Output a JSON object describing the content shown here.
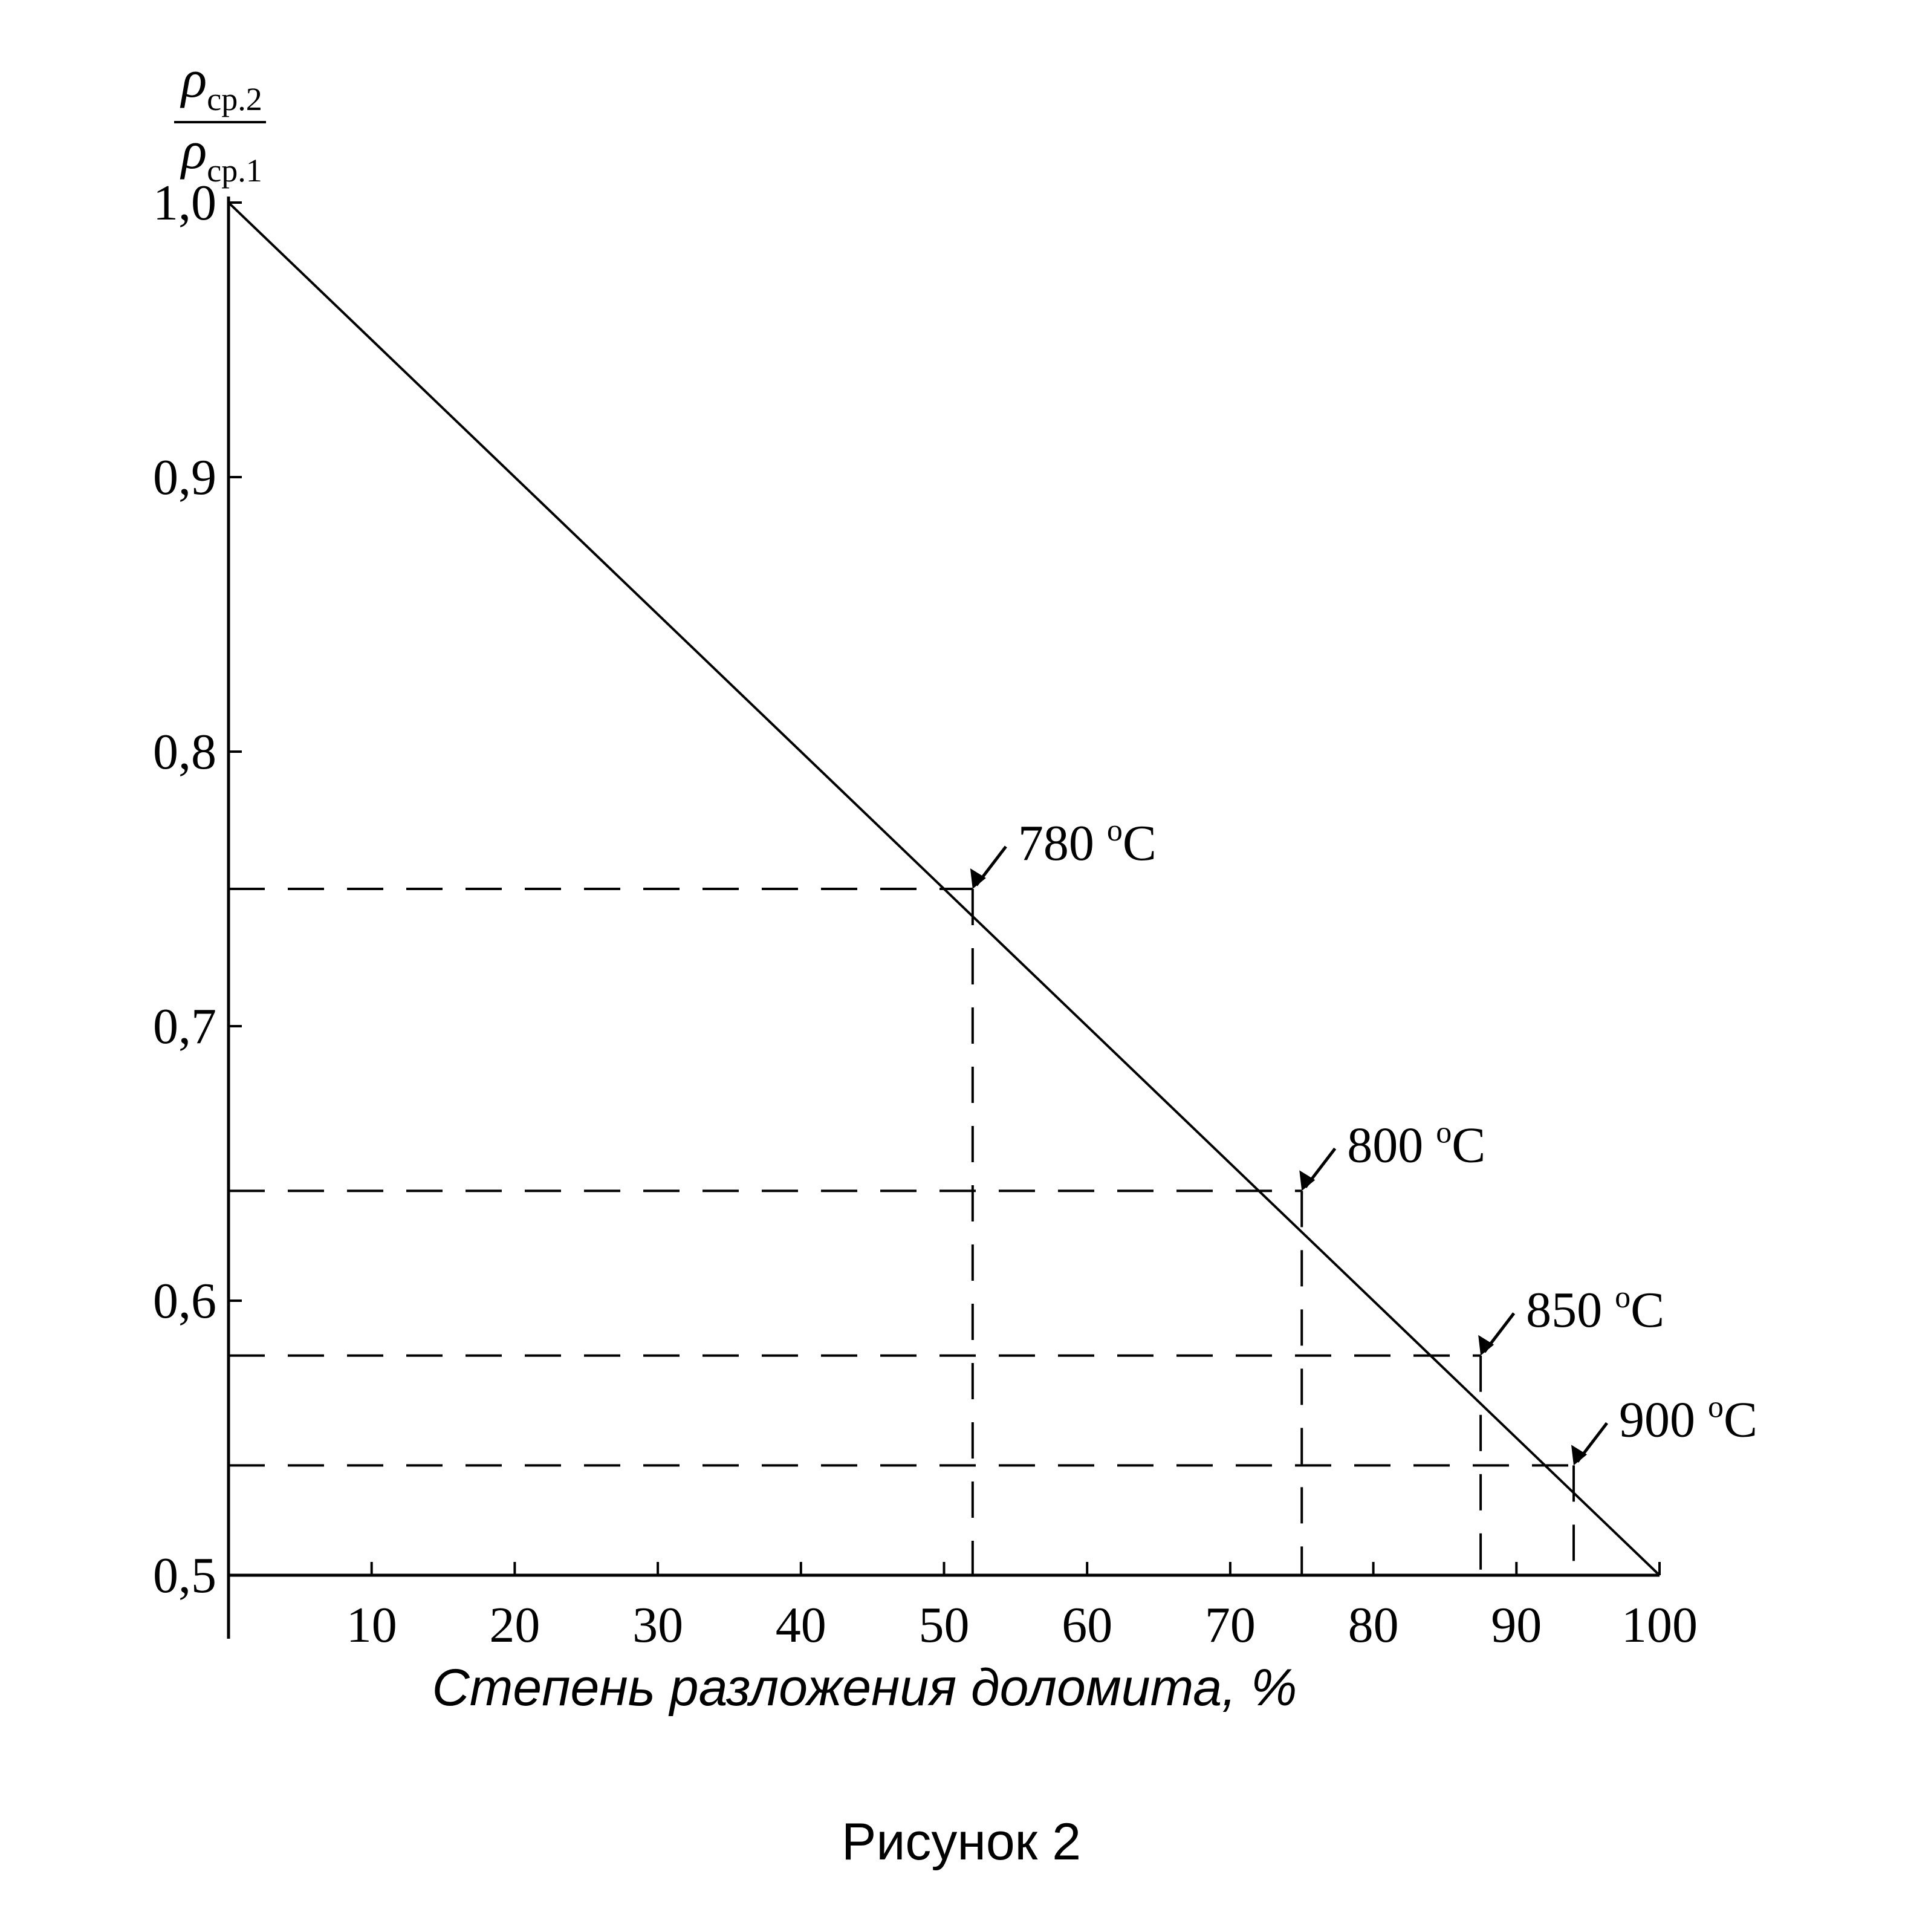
{
  "chart_data": {
    "type": "line",
    "ylabel": {
      "num_symbol": "ρ",
      "num_sub": "ср.2",
      "den_symbol": "ρ",
      "den_sub": "ср.1"
    },
    "xlabel": "Степень разложения доломита, %",
    "caption": "Рисунок 2",
    "xlim": [
      0,
      100
    ],
    "ylim": [
      0.5,
      1.0
    ],
    "x_ticks": [
      10,
      20,
      30,
      40,
      50,
      60,
      70,
      80,
      90,
      100
    ],
    "x_tick_labels": [
      "10",
      "20",
      "30",
      "40",
      "50",
      "60",
      "70",
      "80",
      "90",
      "100"
    ],
    "y_ticks": [
      0.5,
      0.6,
      0.7,
      0.8,
      0.9,
      1.0
    ],
    "y_tick_labels": [
      "0,5",
      "0,6",
      "0,7",
      "0,8",
      "0,9",
      "1,0"
    ],
    "grid": false,
    "series": [
      {
        "x": [
          0,
          100
        ],
        "y": [
          1.0,
          0.5
        ]
      }
    ],
    "annotations": [
      {
        "label": "780 ",
        "sup": "o",
        "unit": "C",
        "x": 52,
        "y": 0.75
      },
      {
        "label": "800 ",
        "sup": "o",
        "unit": "C",
        "x": 75,
        "y": 0.64
      },
      {
        "label": "850 ",
        "sup": "o",
        "unit": "C",
        "x": 87.5,
        "y": 0.58
      },
      {
        "label": "900 ",
        "sup": "o",
        "unit": "C",
        "x": 94,
        "y": 0.54
      }
    ]
  }
}
